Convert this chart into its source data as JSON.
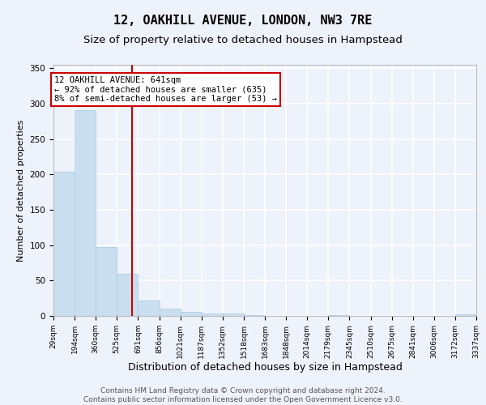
{
  "title": "12, OAKHILL AVENUE, LONDON, NW3 7RE",
  "subtitle": "Size of property relative to detached houses in Hampstead",
  "xlabel": "Distribution of detached houses by size in Hampstead",
  "ylabel": "Number of detached properties",
  "bar_heights": [
    204,
    291,
    97,
    60,
    22,
    10,
    6,
    4,
    3,
    1,
    0,
    0,
    0,
    1,
    0,
    0,
    0,
    0,
    0,
    2
  ],
  "bin_edges": [
    29,
    194,
    360,
    525,
    691,
    856,
    1021,
    1187,
    1352,
    1518,
    1683,
    1848,
    2014,
    2179,
    2345,
    2510,
    2675,
    2841,
    3006,
    3172,
    3337
  ],
  "tick_labels": [
    "29sqm",
    "194sqm",
    "360sqm",
    "525sqm",
    "691sqm",
    "856sqm",
    "1021sqm",
    "1187sqm",
    "1352sqm",
    "1518sqm",
    "1683sqm",
    "1848sqm",
    "2014sqm",
    "2179sqm",
    "2345sqm",
    "2510sqm",
    "2675sqm",
    "2841sqm",
    "3006sqm",
    "3172sqm",
    "3337sqm"
  ],
  "bar_color": "#c9dff0",
  "bar_edge_color": "#a8c8e8",
  "vline_x": 641,
  "vline_color": "#cc0000",
  "annotation_text": "12 OAKHILL AVENUE: 641sqm\n← 92% of detached houses are smaller (635)\n8% of semi-detached houses are larger (53) →",
  "annotation_box_color": "#ffffff",
  "annotation_box_edge_color": "#cc0000",
  "ylim": [
    0,
    355
  ],
  "yticks": [
    0,
    50,
    100,
    150,
    200,
    250,
    300,
    350
  ],
  "footer_text": "Contains HM Land Registry data © Crown copyright and database right 2024.\nContains public sector information licensed under the Open Government Licence v3.0.",
  "background_color": "#eef2fa",
  "plot_background_color": "#eef2fa",
  "grid_color": "#ffffff",
  "title_fontsize": 11,
  "subtitle_fontsize": 9.5,
  "axis_label_fontsize": 8,
  "tick_fontsize": 6.5,
  "annotation_fontsize": 7.5,
  "footer_fontsize": 6.5
}
